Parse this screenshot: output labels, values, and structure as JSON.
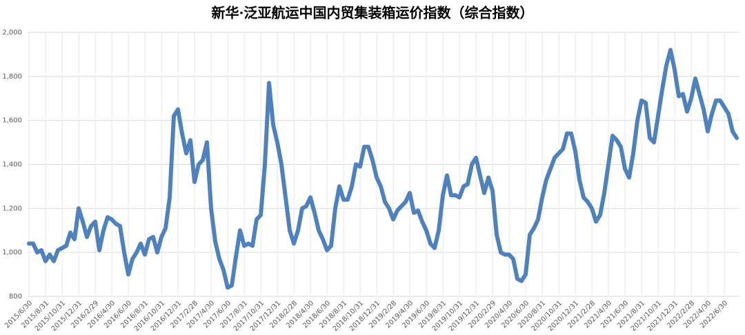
{
  "chart_data": {
    "type": "line",
    "title": "新华·泛亚航运中国内贸集装箱运价指数（综合指数）",
    "categories": [
      "2015/6/30",
      null,
      null,
      null,
      "2015/8/31",
      null,
      null,
      null,
      "2015/10/31",
      null,
      null,
      null,
      "2015/12/31",
      null,
      null,
      null,
      "2016/2/29",
      null,
      null,
      null,
      "2016/4/30",
      null,
      null,
      null,
      "2016/6/30",
      null,
      null,
      null,
      "2016/8/31",
      null,
      null,
      null,
      "2016/10/31",
      null,
      null,
      null,
      "2016/12/31",
      null,
      null,
      null,
      "2017/2/28",
      null,
      null,
      null,
      "2017/4/30",
      null,
      null,
      null,
      "2017/6/30",
      null,
      null,
      null,
      "2017/8/31",
      null,
      null,
      null,
      "2017/10/31",
      null,
      null,
      null,
      "2017/12/31",
      null,
      null,
      null,
      "2018/2/28",
      null,
      null,
      null,
      "2018/4/30",
      null,
      null,
      null,
      "2018/6/30",
      null,
      null,
      null,
      "2018/8/31",
      null,
      null,
      null,
      "2018/10/31",
      null,
      null,
      null,
      "2018/12/31",
      null,
      null,
      null,
      "2019/2/28",
      null,
      null,
      null,
      "2019/4/30",
      null,
      null,
      null,
      "2019/6/30",
      null,
      null,
      null,
      "2019/8/31",
      null,
      null,
      null,
      "2019/10/31",
      null,
      null,
      null,
      "2019/12/31",
      null,
      null,
      null,
      "2020/2/29",
      null,
      null,
      null,
      "2020/4/30",
      null,
      null,
      null,
      "2020/6/30",
      null,
      null,
      null,
      "2020/8/31",
      null,
      null,
      null,
      "2020/10/31",
      null,
      null,
      null,
      "2020/12/31",
      null,
      null,
      null,
      "2021/2/28",
      null,
      null,
      null,
      "2021/4/30",
      null,
      null,
      null,
      "2021/6/30",
      null,
      null,
      null,
      "2021/8/31",
      null,
      null,
      null,
      "2021/10/31",
      null,
      null,
      null,
      "2021/12/31",
      null,
      null,
      null,
      "2022/2/28",
      null,
      null,
      null,
      "2022/4/30",
      null,
      null,
      null,
      "2022/6/30",
      null,
      null,
      null
    ],
    "values": [
      1040,
      1040,
      1000,
      1010,
      960,
      990,
      960,
      1010,
      1020,
      1030,
      1090,
      1060,
      1200,
      1140,
      1070,
      1120,
      1140,
      1010,
      1100,
      1160,
      1150,
      1130,
      1120,
      1000,
      900,
      970,
      1000,
      1040,
      990,
      1060,
      1070,
      1000,
      1070,
      1110,
      1250,
      1620,
      1650,
      1540,
      1450,
      1510,
      1320,
      1400,
      1420,
      1500,
      1200,
      1050,
      970,
      920,
      840,
      850,
      980,
      1100,
      1030,
      1040,
      1030,
      1150,
      1170,
      1400,
      1770,
      1580,
      1500,
      1400,
      1250,
      1100,
      1040,
      1100,
      1200,
      1210,
      1250,
      1180,
      1100,
      1060,
      1010,
      1030,
      1200,
      1300,
      1240,
      1240,
      1300,
      1400,
      1390,
      1480,
      1480,
      1420,
      1340,
      1300,
      1230,
      1200,
      1150,
      1190,
      1210,
      1230,
      1270,
      1180,
      1190,
      1140,
      1100,
      1040,
      1020,
      1100,
      1260,
      1350,
      1260,
      1260,
      1250,
      1300,
      1310,
      1400,
      1430,
      1350,
      1270,
      1340,
      1280,
      1080,
      1000,
      990,
      990,
      970,
      880,
      870,
      900,
      1080,
      1110,
      1150,
      1250,
      1330,
      1380,
      1430,
      1450,
      1470,
      1540,
      1540,
      1460,
      1330,
      1250,
      1230,
      1200,
      1140,
      1170,
      1270,
      1400,
      1530,
      1510,
      1480,
      1380,
      1340,
      1450,
      1600,
      1690,
      1680,
      1520,
      1500,
      1620,
      1740,
      1850,
      1920,
      1830,
      1710,
      1720,
      1640,
      1700,
      1790,
      1720,
      1650,
      1550,
      1630,
      1690,
      1690,
      1660,
      1630,
      1550,
      1520
    ],
    "color": "#4f81bd",
    "ylim": [
      800,
      2000
    ],
    "yticks": [
      800,
      {
        "value": 1000,
        "label": "1,000"
      },
      {
        "value": 1200,
        "label": "1,200"
      },
      {
        "value": 1400,
        "label": "1,400"
      },
      {
        "value": 1600,
        "label": "1,600"
      },
      {
        "value": 1800,
        "label": "1,800"
      },
      {
        "value": 2000,
        "label": "2,000"
      }
    ],
    "grid": true
  }
}
